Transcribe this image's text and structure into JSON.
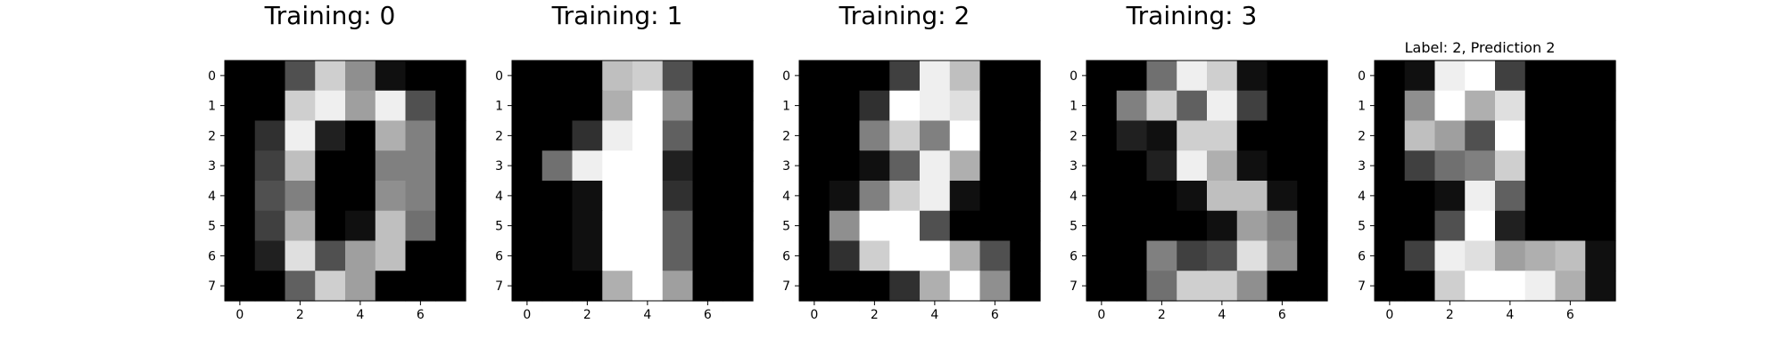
{
  "figure": {
    "background": "#ffffff",
    "colormap": "gray"
  },
  "chart_data": [
    {
      "type": "heatmap",
      "title": "Training: 0",
      "xticks": [
        0,
        2,
        4,
        6
      ],
      "yticks": [
        0,
        1,
        2,
        3,
        4,
        5,
        6,
        7
      ],
      "xlim": [
        -0.5,
        7.5
      ],
      "ylim": [
        7.5,
        -0.5
      ],
      "vmin": 0,
      "vmax": 16,
      "grid": false,
      "values": [
        [
          0,
          0,
          5,
          13,
          9,
          1,
          0,
          0
        ],
        [
          0,
          0,
          13,
          15,
          10,
          15,
          5,
          0
        ],
        [
          0,
          3,
          15,
          2,
          0,
          11,
          8,
          0
        ],
        [
          0,
          4,
          12,
          0,
          0,
          8,
          8,
          0
        ],
        [
          0,
          5,
          8,
          0,
          0,
          9,
          8,
          0
        ],
        [
          0,
          4,
          11,
          0,
          1,
          12,
          7,
          0
        ],
        [
          0,
          2,
          14,
          5,
          10,
          12,
          0,
          0
        ],
        [
          0,
          0,
          6,
          13,
          10,
          0,
          0,
          0
        ]
      ]
    },
    {
      "type": "heatmap",
      "title": "Training: 1",
      "xticks": [
        0,
        2,
        4,
        6
      ],
      "yticks": [
        0,
        1,
        2,
        3,
        4,
        5,
        6,
        7
      ],
      "xlim": [
        -0.5,
        7.5
      ],
      "ylim": [
        7.5,
        -0.5
      ],
      "vmin": 0,
      "vmax": 16,
      "grid": false,
      "values": [
        [
          0,
          0,
          0,
          12,
          13,
          5,
          0,
          0
        ],
        [
          0,
          0,
          0,
          11,
          16,
          9,
          0,
          0
        ],
        [
          0,
          0,
          3,
          15,
          16,
          6,
          0,
          0
        ],
        [
          0,
          7,
          15,
          16,
          16,
          2,
          0,
          0
        ],
        [
          0,
          0,
          1,
          16,
          16,
          3,
          0,
          0
        ],
        [
          0,
          0,
          1,
          16,
          16,
          6,
          0,
          0
        ],
        [
          0,
          0,
          1,
          16,
          16,
          6,
          0,
          0
        ],
        [
          0,
          0,
          0,
          11,
          16,
          10,
          0,
          0
        ]
      ]
    },
    {
      "type": "heatmap",
      "title": "Training: 2",
      "xticks": [
        0,
        2,
        4,
        6
      ],
      "yticks": [
        0,
        1,
        2,
        3,
        4,
        5,
        6,
        7
      ],
      "xlim": [
        -0.5,
        7.5
      ],
      "ylim": [
        7.5,
        -0.5
      ],
      "vmin": 0,
      "vmax": 16,
      "grid": false,
      "values": [
        [
          0,
          0,
          0,
          4,
          15,
          12,
          0,
          0
        ],
        [
          0,
          0,
          3,
          16,
          15,
          14,
          0,
          0
        ],
        [
          0,
          0,
          8,
          13,
          8,
          16,
          0,
          0
        ],
        [
          0,
          0,
          1,
          6,
          15,
          11,
          0,
          0
        ],
        [
          0,
          1,
          8,
          13,
          15,
          1,
          0,
          0
        ],
        [
          0,
          9,
          16,
          16,
          5,
          0,
          0,
          0
        ],
        [
          0,
          3,
          13,
          16,
          16,
          11,
          5,
          0
        ],
        [
          0,
          0,
          0,
          3,
          11,
          16,
          9,
          0
        ]
      ]
    },
    {
      "type": "heatmap",
      "title": "Training: 3",
      "xticks": [
        0,
        2,
        4,
        6
      ],
      "yticks": [
        0,
        1,
        2,
        3,
        4,
        5,
        6,
        7
      ],
      "xlim": [
        -0.5,
        7.5
      ],
      "ylim": [
        7.5,
        -0.5
      ],
      "vmin": 0,
      "vmax": 16,
      "grid": false,
      "values": [
        [
          0,
          0,
          7,
          15,
          13,
          1,
          0,
          0
        ],
        [
          0,
          8,
          13,
          6,
          15,
          4,
          0,
          0
        ],
        [
          0,
          2,
          1,
          13,
          13,
          0,
          0,
          0
        ],
        [
          0,
          0,
          2,
          15,
          11,
          1,
          0,
          0
        ],
        [
          0,
          0,
          0,
          1,
          12,
          12,
          1,
          0
        ],
        [
          0,
          0,
          0,
          0,
          1,
          10,
          8,
          0
        ],
        [
          0,
          0,
          8,
          4,
          5,
          14,
          9,
          0
        ],
        [
          0,
          0,
          7,
          13,
          13,
          9,
          0,
          0
        ]
      ]
    },
    {
      "type": "heatmap",
      "title": "Label: 2, Prediction 2",
      "xticks": [
        0,
        2,
        4,
        6
      ],
      "yticks": [
        0,
        1,
        2,
        3,
        4,
        5,
        6,
        7
      ],
      "xlim": [
        -0.5,
        7.5
      ],
      "ylim": [
        7.5,
        -0.5
      ],
      "vmin": 0,
      "vmax": 16,
      "grid": false,
      "values": [
        [
          0,
          1,
          15,
          16,
          4,
          0,
          0,
          0
        ],
        [
          0,
          9,
          16,
          11,
          14,
          0,
          0,
          0
        ],
        [
          0,
          12,
          10,
          5,
          16,
          0,
          0,
          0
        ],
        [
          0,
          4,
          7,
          8,
          13,
          0,
          0,
          0
        ],
        [
          0,
          0,
          1,
          15,
          6,
          0,
          0,
          0
        ],
        [
          0,
          0,
          5,
          16,
          2,
          0,
          0,
          0
        ],
        [
          0,
          4,
          15,
          14,
          10,
          11,
          12,
          1
        ],
        [
          0,
          0,
          13,
          16,
          16,
          15,
          11,
          1
        ]
      ]
    }
  ]
}
